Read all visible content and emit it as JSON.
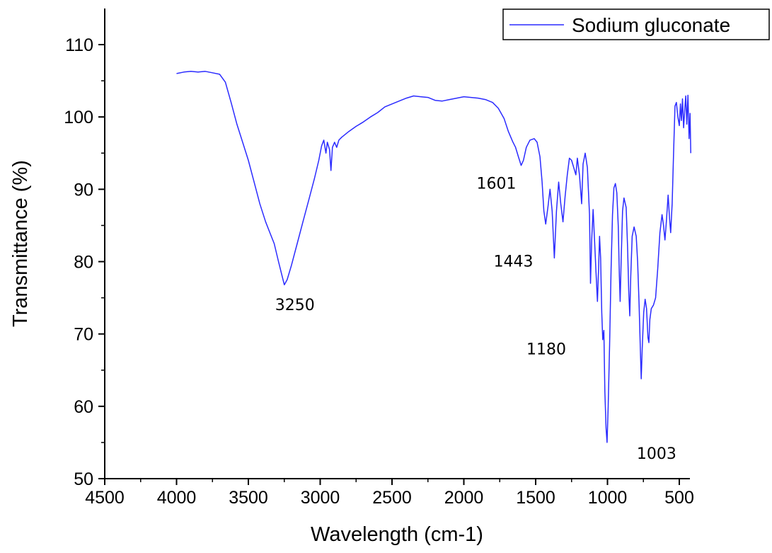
{
  "chart_data": {
    "type": "line",
    "title": "",
    "xlabel": "Wavelength (cm-1)",
    "ylabel": "Transmittance (%)",
    "xlim": [
      4500,
      420
    ],
    "ylim": [
      50,
      115
    ],
    "x_reversed": true,
    "x_ticks": [
      4500,
      4000,
      3500,
      3000,
      2500,
      2000,
      1500,
      1000,
      500
    ],
    "x_tick_labels": [
      "4500",
      "4000",
      "3500",
      "3000",
      "2500",
      "2000",
      "1500",
      "1000",
      "500"
    ],
    "y_ticks": [
      50,
      60,
      70,
      80,
      90,
      100,
      110
    ],
    "y_tick_labels": [
      "50",
      "60",
      "70",
      "80",
      "90",
      "100",
      "110"
    ],
    "grid": false,
    "legend_position": "top-right",
    "series": [
      {
        "name": "Sodium gluconate",
        "color": "#2b2bff",
        "points": [
          [
            4000,
            106.0
          ],
          [
            3950,
            106.2
          ],
          [
            3900,
            106.3
          ],
          [
            3850,
            106.2
          ],
          [
            3800,
            106.3
          ],
          [
            3750,
            106.1
          ],
          [
            3700,
            105.9
          ],
          [
            3660,
            104.8
          ],
          [
            3620,
            102.0
          ],
          [
            3580,
            99.0
          ],
          [
            3540,
            96.5
          ],
          [
            3500,
            94.0
          ],
          [
            3460,
            91.0
          ],
          [
            3420,
            88.0
          ],
          [
            3380,
            85.5
          ],
          [
            3350,
            84.0
          ],
          [
            3320,
            82.5
          ],
          [
            3290,
            80.0
          ],
          [
            3265,
            78.0
          ],
          [
            3250,
            76.8
          ],
          [
            3230,
            77.5
          ],
          [
            3200,
            79.5
          ],
          [
            3160,
            82.5
          ],
          [
            3120,
            85.5
          ],
          [
            3080,
            88.5
          ],
          [
            3040,
            91.5
          ],
          [
            3010,
            94.0
          ],
          [
            2990,
            96.0
          ],
          [
            2975,
            96.8
          ],
          [
            2960,
            95.0
          ],
          [
            2950,
            96.5
          ],
          [
            2935,
            95.5
          ],
          [
            2925,
            92.6
          ],
          [
            2915,
            95.8
          ],
          [
            2900,
            96.5
          ],
          [
            2885,
            95.8
          ],
          [
            2870,
            96.8
          ],
          [
            2850,
            97.2
          ],
          [
            2800,
            98.0
          ],
          [
            2750,
            98.7
          ],
          [
            2700,
            99.3
          ],
          [
            2650,
            100.0
          ],
          [
            2600,
            100.6
          ],
          [
            2550,
            101.4
          ],
          [
            2500,
            101.8
          ],
          [
            2450,
            102.2
          ],
          [
            2400,
            102.6
          ],
          [
            2350,
            102.9
          ],
          [
            2300,
            102.8
          ],
          [
            2250,
            102.7
          ],
          [
            2200,
            102.3
          ],
          [
            2150,
            102.2
          ],
          [
            2100,
            102.4
          ],
          [
            2050,
            102.6
          ],
          [
            2000,
            102.8
          ],
          [
            1950,
            102.7
          ],
          [
            1900,
            102.6
          ],
          [
            1850,
            102.4
          ],
          [
            1800,
            102.0
          ],
          [
            1760,
            101.2
          ],
          [
            1720,
            99.8
          ],
          [
            1690,
            98.0
          ],
          [
            1660,
            96.6
          ],
          [
            1640,
            95.8
          ],
          [
            1620,
            94.5
          ],
          [
            1601,
            93.3
          ],
          [
            1585,
            94.0
          ],
          [
            1565,
            95.8
          ],
          [
            1540,
            96.8
          ],
          [
            1510,
            97.0
          ],
          [
            1490,
            96.5
          ],
          [
            1470,
            94.5
          ],
          [
            1455,
            91.0
          ],
          [
            1443,
            87.0
          ],
          [
            1430,
            85.2
          ],
          [
            1415,
            87.5
          ],
          [
            1400,
            90.0
          ],
          [
            1385,
            87.0
          ],
          [
            1370,
            80.5
          ],
          [
            1355,
            87.0
          ],
          [
            1340,
            91.0
          ],
          [
            1325,
            88.0
          ],
          [
            1310,
            85.5
          ],
          [
            1295,
            89.0
          ],
          [
            1280,
            92.0
          ],
          [
            1265,
            94.3
          ],
          [
            1250,
            94.0
          ],
          [
            1235,
            93.0
          ],
          [
            1220,
            92.0
          ],
          [
            1210,
            94.3
          ],
          [
            1195,
            92.0
          ],
          [
            1180,
            88.0
          ],
          [
            1170,
            93.5
          ],
          [
            1155,
            95.0
          ],
          [
            1140,
            93.0
          ],
          [
            1125,
            86.5
          ],
          [
            1118,
            77.0
          ],
          [
            1110,
            83.0
          ],
          [
            1100,
            87.2
          ],
          [
            1090,
            83.0
          ],
          [
            1080,
            78.5
          ],
          [
            1070,
            74.5
          ],
          [
            1062,
            79.0
          ],
          [
            1055,
            83.5
          ],
          [
            1048,
            80.5
          ],
          [
            1040,
            73.0
          ],
          [
            1033,
            69.2
          ],
          [
            1025,
            70.5
          ],
          [
            1018,
            62.0
          ],
          [
            1010,
            57.0
          ],
          [
            1003,
            55.0
          ],
          [
            995,
            60.0
          ],
          [
            985,
            68.5
          ],
          [
            975,
            79.0
          ],
          [
            965,
            86.5
          ],
          [
            955,
            90.2
          ],
          [
            945,
            90.8
          ],
          [
            935,
            89.5
          ],
          [
            925,
            85.0
          ],
          [
            917,
            78.0
          ],
          [
            912,
            74.5
          ],
          [
            905,
            80.0
          ],
          [
            895,
            87.0
          ],
          [
            885,
            88.8
          ],
          [
            870,
            87.5
          ],
          [
            860,
            82.0
          ],
          [
            852,
            76.0
          ],
          [
            845,
            72.5
          ],
          [
            838,
            78.0
          ],
          [
            828,
            83.5
          ],
          [
            815,
            84.8
          ],
          [
            800,
            83.5
          ],
          [
            790,
            80.0
          ],
          [
            780,
            74.0
          ],
          [
            770,
            67.0
          ],
          [
            765,
            63.8
          ],
          [
            758,
            68.0
          ],
          [
            748,
            73.0
          ],
          [
            738,
            74.8
          ],
          [
            728,
            73.5
          ],
          [
            718,
            69.5
          ],
          [
            712,
            68.8
          ],
          [
            705,
            72.0
          ],
          [
            695,
            73.5
          ],
          [
            680,
            74.0
          ],
          [
            665,
            75.0
          ],
          [
            650,
            79.0
          ],
          [
            635,
            84.0
          ],
          [
            620,
            86.5
          ],
          [
            610,
            85.0
          ],
          [
            600,
            83.0
          ],
          [
            590,
            85.5
          ],
          [
            578,
            89.2
          ],
          [
            568,
            86.0
          ],
          [
            560,
            84.0
          ],
          [
            550,
            88.0
          ],
          [
            540,
            95.0
          ],
          [
            530,
            101.5
          ],
          [
            520,
            102.0
          ],
          [
            510,
            100.0
          ],
          [
            500,
            98.8
          ],
          [
            492,
            101.8
          ],
          [
            485,
            99.5
          ],
          [
            478,
            102.5
          ],
          [
            470,
            98.5
          ],
          [
            462,
            101.0
          ],
          [
            455,
            102.9
          ],
          [
            448,
            99.0
          ],
          [
            440,
            103.0
          ],
          [
            432,
            97.0
          ],
          [
            425,
            100.5
          ],
          [
            420,
            95.0
          ]
        ]
      }
    ],
    "annotations": [
      {
        "text": "3250",
        "x": 3250,
        "y": 76.8
      },
      {
        "text": "1601",
        "x": 1601,
        "y": 93.3
      },
      {
        "text": "1443",
        "x": 1443,
        "y": 85.2
      },
      {
        "text": "1180",
        "x": 1180,
        "y": 74.5
      },
      {
        "text": "1003",
        "x": 1003,
        "y": 55.0
      }
    ]
  }
}
